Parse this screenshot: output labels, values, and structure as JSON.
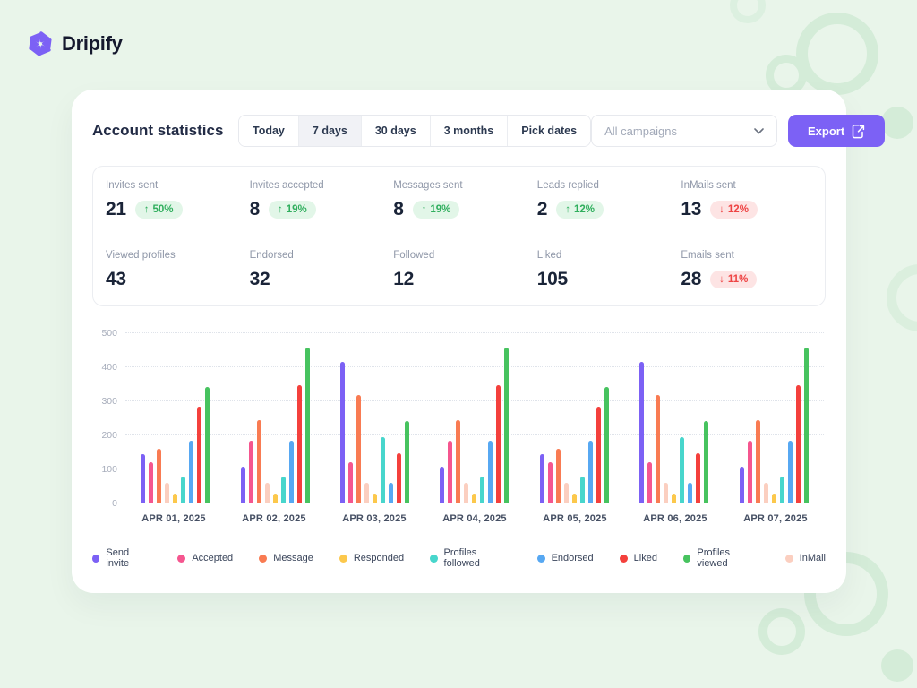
{
  "brand": {
    "name": "Dripify",
    "logo_color": "#7c61f5"
  },
  "header": {
    "title": "Account statistics",
    "range_tabs": [
      {
        "label": "Today",
        "active": false
      },
      {
        "label": "7 days",
        "active": true
      },
      {
        "label": "30 days",
        "active": false
      },
      {
        "label": "3 months",
        "active": false
      },
      {
        "label": "Pick dates",
        "active": false
      }
    ],
    "campaign_filter": {
      "value": "All campaigns"
    },
    "export_label": "Export"
  },
  "icons": {
    "logo": "pinwheel-logo-icon",
    "chevron": "chevron-down-icon",
    "export": "export-file-icon",
    "up_arrow": "↑",
    "down_arrow": "↓"
  },
  "colors": {
    "accent": "#7c61f5",
    "badge_up_bg": "#e2f6e8",
    "badge_up_text": "#2fae5d",
    "badge_down_bg": "#fde4e4",
    "badge_down_text": "#ee4444",
    "page_bg": "#e9f5ea"
  },
  "stats": {
    "rows": [
      [
        {
          "label": "Invites sent",
          "value": "21",
          "change": {
            "dir": "up",
            "text": "50%"
          }
        },
        {
          "label": "Invites accepted",
          "value": "8",
          "change": {
            "dir": "up",
            "text": "19%"
          }
        },
        {
          "label": "Messages sent",
          "value": "8",
          "change": {
            "dir": "up",
            "text": "19%"
          }
        },
        {
          "label": "Leads replied",
          "value": "2",
          "change": {
            "dir": "up",
            "text": "12%"
          }
        },
        {
          "label": "InMails sent",
          "value": "13",
          "change": {
            "dir": "down",
            "text": "12%"
          }
        }
      ],
      [
        {
          "label": "Viewed profiles",
          "value": "43"
        },
        {
          "label": "Endorsed",
          "value": "32"
        },
        {
          "label": "Followed",
          "value": "12"
        },
        {
          "label": "Liked",
          "value": "105"
        },
        {
          "label": "Emails sent",
          "value": "28",
          "change": {
            "dir": "down",
            "text": "11%"
          }
        }
      ]
    ]
  },
  "chart_data": {
    "type": "bar",
    "title": "",
    "xlabel": "",
    "ylabel": "",
    "categories": [
      "APR 01, 2025",
      "APR 02, 2025",
      "APR 03, 2025",
      "APR 04, 2025",
      "APR 05, 2025",
      "APR 06, 2025",
      "APR 07, 2025"
    ],
    "series": [
      {
        "name": "Send invite",
        "color": "#7c61f5",
        "values": [
          145,
          107,
          415,
          107,
          145,
          415,
          107
        ]
      },
      {
        "name": "Accepted",
        "color": "#f5568f",
        "values": [
          122,
          183,
          122,
          183,
          122,
          122,
          183
        ]
      },
      {
        "name": "Message",
        "color": "#f97b52",
        "values": [
          160,
          245,
          318,
          245,
          160,
          318,
          245
        ]
      },
      {
        "name": "Responded",
        "color": "#fcc84c",
        "values": [
          28,
          28,
          30,
          28,
          28,
          30,
          28
        ]
      },
      {
        "name": "Profiles followed",
        "color": "#48d6cc",
        "values": [
          80,
          80,
          196,
          80,
          80,
          196,
          80
        ]
      },
      {
        "name": "Endorsed",
        "color": "#57a8f2",
        "values": [
          185,
          184,
          60,
          184,
          185,
          60,
          184
        ]
      },
      {
        "name": "Liked",
        "color": "#f4403c",
        "values": [
          283,
          348,
          148,
          348,
          283,
          148,
          348
        ]
      },
      {
        "name": "Profiles viewed",
        "color": "#47c35f",
        "values": [
          343,
          458,
          243,
          458,
          343,
          243,
          458
        ]
      },
      {
        "name": "InMail",
        "color": "#fbcfc0",
        "values": [
          60,
          60,
          60,
          60,
          60,
          60,
          60
        ]
      }
    ],
    "bar_draw_order": [
      0,
      1,
      2,
      8,
      3,
      4,
      5,
      6,
      7
    ],
    "ylim": [
      0,
      500
    ],
    "yticks": [
      0,
      100,
      200,
      300,
      400,
      500
    ],
    "grid": true,
    "legend_position": "bottom"
  }
}
